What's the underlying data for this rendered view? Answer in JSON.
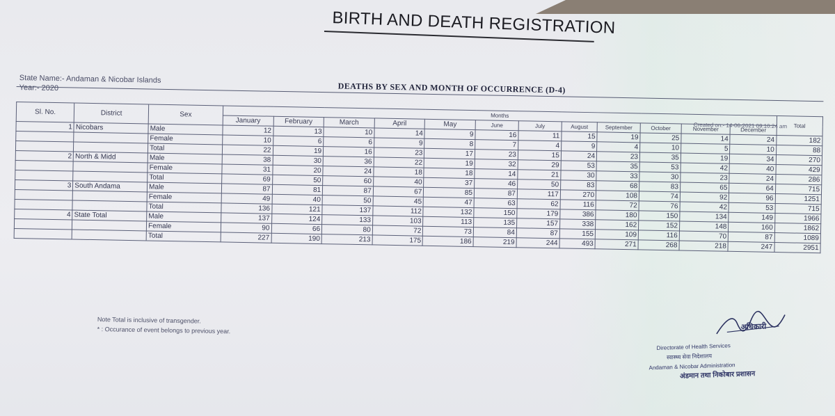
{
  "heading": "BIRTH AND DEATH REGISTRATION",
  "subtitle": "DEATHS BY SEX AND MONTH OF OCCURRENCE (D-4)",
  "state_line": "State Name:- Andaman & Nicobar Islands",
  "year_line": "Year:- 2020",
  "created": "Created on:- 14-06-2021 09:10:24 am",
  "headers": {
    "sl_no": "Sl. No.",
    "district": "District",
    "sex": "Sex",
    "months_group": "Months",
    "months": [
      "January",
      "February",
      "March",
      "April",
      "May",
      "June",
      "July",
      "August",
      "September",
      "October",
      "November",
      "December"
    ],
    "total": "Total"
  },
  "rows": [
    {
      "sl": "1",
      "district": "Nicobars",
      "sex": "Male",
      "values": [
        "12",
        "13",
        "10",
        "14",
        "9",
        "16",
        "11",
        "15",
        "19",
        "25",
        "14",
        "24",
        "182"
      ]
    },
    {
      "sl": "",
      "district": "",
      "sex": "Female",
      "values": [
        "10",
        "6",
        "6",
        "9",
        "8",
        "7",
        "4",
        "9",
        "4",
        "10",
        "5",
        "10",
        "88"
      ]
    },
    {
      "sl": "",
      "district": "",
      "sex": "Total",
      "values": [
        "22",
        "19",
        "16",
        "23",
        "17",
        "23",
        "15",
        "24",
        "23",
        "35",
        "19",
        "34",
        "270"
      ]
    },
    {
      "sl": "2",
      "district": "North & Midd",
      "sex": "Male",
      "values": [
        "38",
        "30",
        "36",
        "22",
        "19",
        "32",
        "29",
        "53",
        "35",
        "53",
        "42",
        "40",
        "429"
      ]
    },
    {
      "sl": "",
      "district": "",
      "sex": "Female",
      "values": [
        "31",
        "20",
        "24",
        "18",
        "18",
        "14",
        "21",
        "30",
        "33",
        "30",
        "23",
        "24",
        "286"
      ]
    },
    {
      "sl": "",
      "district": "",
      "sex": "Total",
      "values": [
        "69",
        "50",
        "60",
        "40",
        "37",
        "46",
        "50",
        "83",
        "68",
        "83",
        "65",
        "64",
        "715"
      ]
    },
    {
      "sl": "3",
      "district": "South Andama",
      "sex": "Male",
      "values": [
        "87",
        "81",
        "87",
        "67",
        "85",
        "87",
        "117",
        "270",
        "108",
        "74",
        "92",
        "96",
        "1251"
      ]
    },
    {
      "sl": "",
      "district": "",
      "sex": "Female",
      "values": [
        "49",
        "40",
        "50",
        "45",
        "47",
        "63",
        "62",
        "116",
        "72",
        "76",
        "42",
        "53",
        "715"
      ]
    },
    {
      "sl": "",
      "district": "",
      "sex": "Total",
      "values": [
        "136",
        "121",
        "137",
        "112",
        "132",
        "150",
        "179",
        "386",
        "180",
        "150",
        "134",
        "149",
        "1966"
      ]
    },
    {
      "sl": "4",
      "district": "State Total",
      "sex": "Male",
      "values": [
        "137",
        "124",
        "133",
        "103",
        "113",
        "135",
        "157",
        "338",
        "162",
        "152",
        "148",
        "160",
        "1862"
      ]
    },
    {
      "sl": "",
      "district": "",
      "sex": "Female",
      "values": [
        "90",
        "66",
        "80",
        "72",
        "73",
        "84",
        "87",
        "155",
        "109",
        "116",
        "70",
        "87",
        "1089"
      ]
    },
    {
      "sl": "",
      "district": "",
      "sex": "Total",
      "values": [
        "227",
        "190",
        "213",
        "175",
        "186",
        "219",
        "244",
        "493",
        "271",
        "268",
        "218",
        "247",
        "2951"
      ]
    }
  ],
  "notes": {
    "line1": "Note Total is inclusive of transgender.",
    "line2": "* : Occurance of event belongs to previous year."
  },
  "stamp": {
    "line1": "Directorate of Health Services",
    "line2": "स्वास्थ्य सेवा निदेशालय",
    "line3": "Andaman & Nicobar Administration",
    "line4": "अंडमान तथा निकोबार प्रशासन",
    "title": "अधिकारी"
  }
}
